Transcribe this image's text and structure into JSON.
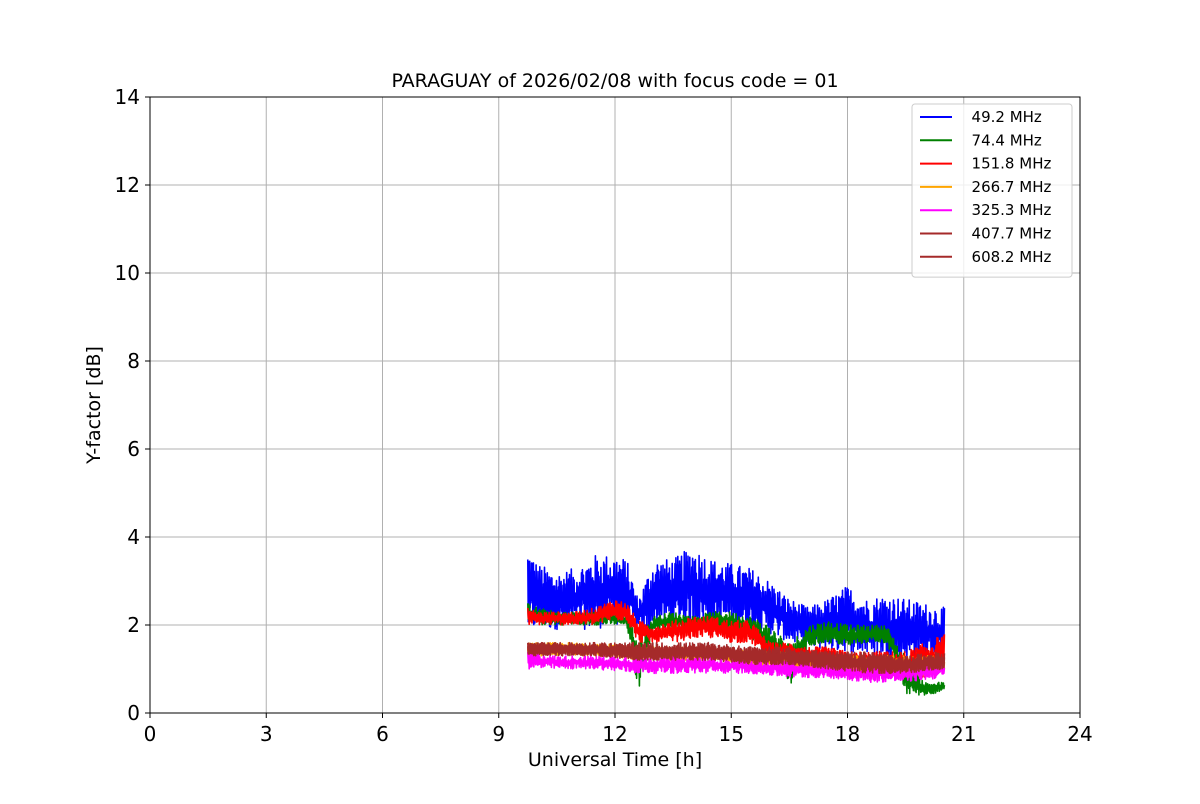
{
  "chart_data": {
    "type": "line",
    "title": "PARAGUAY of 2026/02/08 with focus code = 01",
    "xlabel": "Universal Time [h]",
    "ylabel": "Y-factor [dB]",
    "xlim": [
      0,
      24
    ],
    "ylim": [
      0,
      14
    ],
    "xticks": [
      0,
      3,
      6,
      9,
      12,
      15,
      18,
      21,
      24
    ],
    "yticks": [
      0,
      2,
      4,
      6,
      8,
      10,
      12,
      14
    ],
    "grid": true,
    "legend_position": "top-right",
    "series": [
      {
        "name": "  49.2 MHz",
        "color": "#0000ff",
        "x": [
          9.75,
          10.0,
          10.5,
          11.0,
          11.5,
          12.0,
          12.3,
          12.6,
          13.0,
          13.5,
          14.0,
          14.5,
          15.0,
          15.5,
          16.0,
          16.5,
          17.0,
          17.5,
          18.0,
          18.5,
          19.0,
          19.5,
          20.0,
          20.5
        ],
        "low": [
          1.8,
          1.9,
          1.9,
          1.9,
          1.9,
          2.0,
          2.0,
          1.8,
          1.9,
          2.0,
          2.0,
          2.0,
          2.0,
          1.9,
          1.8,
          1.6,
          1.5,
          1.4,
          1.4,
          1.3,
          1.3,
          1.2,
          1.2,
          1.2
        ],
        "high": [
          3.8,
          3.4,
          3.2,
          3.3,
          3.6,
          3.6,
          3.5,
          2.6,
          3.5,
          3.5,
          3.8,
          3.5,
          3.4,
          3.3,
          3.0,
          2.6,
          2.4,
          2.6,
          2.9,
          2.6,
          2.7,
          2.6,
          2.5,
          2.4
        ]
      },
      {
        "name": "  74.4 MHz",
        "color": "#008000",
        "x": [
          9.75,
          10.0,
          10.5,
          11.0,
          11.5,
          12.0,
          12.3,
          12.6,
          13.0,
          13.5,
          14.0,
          14.5,
          15.0,
          15.5,
          16.0,
          16.5,
          17.0,
          17.5,
          18.0,
          18.5,
          19.0,
          19.5,
          20.0,
          20.5
        ],
        "low": [
          2.0,
          2.0,
          2.0,
          2.0,
          2.0,
          2.0,
          2.0,
          0.5,
          1.9,
          1.9,
          1.9,
          1.9,
          1.9,
          1.7,
          1.2,
          0.6,
          1.5,
          1.6,
          1.5,
          1.6,
          1.6,
          0.4,
          0.4,
          0.5
        ],
        "high": [
          2.5,
          2.4,
          2.3,
          2.3,
          2.3,
          2.3,
          2.2,
          1.8,
          2.2,
          2.3,
          2.2,
          2.3,
          2.3,
          2.2,
          2.0,
          1.6,
          2.0,
          2.1,
          2.0,
          2.0,
          2.0,
          1.3,
          0.7,
          0.7
        ]
      },
      {
        "name": "  151.8 MHz",
        "color": "#ff0000",
        "x": [
          9.75,
          10.0,
          10.5,
          11.0,
          11.5,
          12.0,
          12.3,
          12.6,
          13.0,
          13.5,
          14.0,
          14.5,
          15.0,
          15.5,
          16.0,
          16.5,
          17.0,
          17.5,
          18.0,
          18.5,
          19.0,
          19.5,
          20.0,
          20.5
        ],
        "low": [
          2.0,
          2.0,
          2.0,
          2.0,
          2.0,
          2.1,
          2.1,
          1.6,
          1.6,
          1.6,
          1.7,
          1.7,
          1.6,
          1.6,
          1.2,
          1.2,
          1.1,
          1.0,
          0.9,
          0.8,
          0.9,
          0.8,
          0.8,
          0.9
        ],
        "high": [
          2.4,
          2.3,
          2.3,
          2.3,
          2.4,
          2.6,
          2.5,
          2.1,
          2.0,
          2.1,
          2.2,
          2.2,
          2.1,
          2.1,
          1.6,
          1.6,
          1.5,
          1.5,
          1.4,
          1.4,
          1.4,
          1.4,
          1.6,
          1.8
        ]
      },
      {
        "name": "  266.7 MHz",
        "color": "#ffa500",
        "x": [
          9.75,
          10.5,
          11.5,
          12.5,
          13.5,
          14.5,
          15.5,
          16.5,
          17.5,
          18.5,
          19.5,
          20.5
        ],
        "low": [
          1.3,
          1.3,
          1.3,
          1.2,
          1.2,
          1.2,
          1.1,
          1.0,
          0.9,
          0.8,
          0.8,
          0.9
        ],
        "high": [
          1.6,
          1.6,
          1.6,
          1.5,
          1.5,
          1.5,
          1.4,
          1.4,
          1.3,
          1.3,
          1.3,
          1.3
        ]
      },
      {
        "name": "  325.3 MHz",
        "color": "#ff00ff",
        "x": [
          9.75,
          10.5,
          11.5,
          12.5,
          13.5,
          14.5,
          15.5,
          16.5,
          17.5,
          18.5,
          19.5,
          20.5
        ],
        "low": [
          1.0,
          1.0,
          1.0,
          0.9,
          0.9,
          0.9,
          0.9,
          0.8,
          0.8,
          0.7,
          0.7,
          0.8
        ],
        "high": [
          1.4,
          1.3,
          1.3,
          1.3,
          1.3,
          1.3,
          1.2,
          1.2,
          1.1,
          1.1,
          1.1,
          1.2
        ]
      },
      {
        "name": "  407.7 MHz",
        "color": "#a52a2a",
        "x": [
          9.75,
          10.5,
          11.5,
          12.5,
          13.5,
          14.5,
          15.5,
          16.5,
          17.5,
          18.5,
          19.5,
          20.5
        ],
        "low": [
          1.3,
          1.3,
          1.3,
          1.2,
          1.2,
          1.2,
          1.1,
          1.1,
          1.0,
          0.9,
          0.9,
          1.0
        ],
        "high": [
          1.6,
          1.6,
          1.6,
          1.6,
          1.6,
          1.6,
          1.5,
          1.5,
          1.4,
          1.4,
          1.3,
          1.4
        ]
      },
      {
        "name": "  608.2 MHz",
        "color": "#a52a2a",
        "x": [
          9.75,
          10.5,
          11.5,
          12.5,
          13.5,
          14.5,
          15.5,
          16.5,
          17.5,
          18.5,
          19.5,
          20.5
        ],
        "low": [
          1.3,
          1.3,
          1.3,
          1.2,
          1.2,
          1.2,
          1.1,
          1.1,
          1.0,
          0.9,
          0.9,
          1.0
        ],
        "high": [
          1.6,
          1.6,
          1.6,
          1.5,
          1.5,
          1.5,
          1.5,
          1.4,
          1.4,
          1.3,
          1.3,
          1.3
        ]
      }
    ]
  }
}
